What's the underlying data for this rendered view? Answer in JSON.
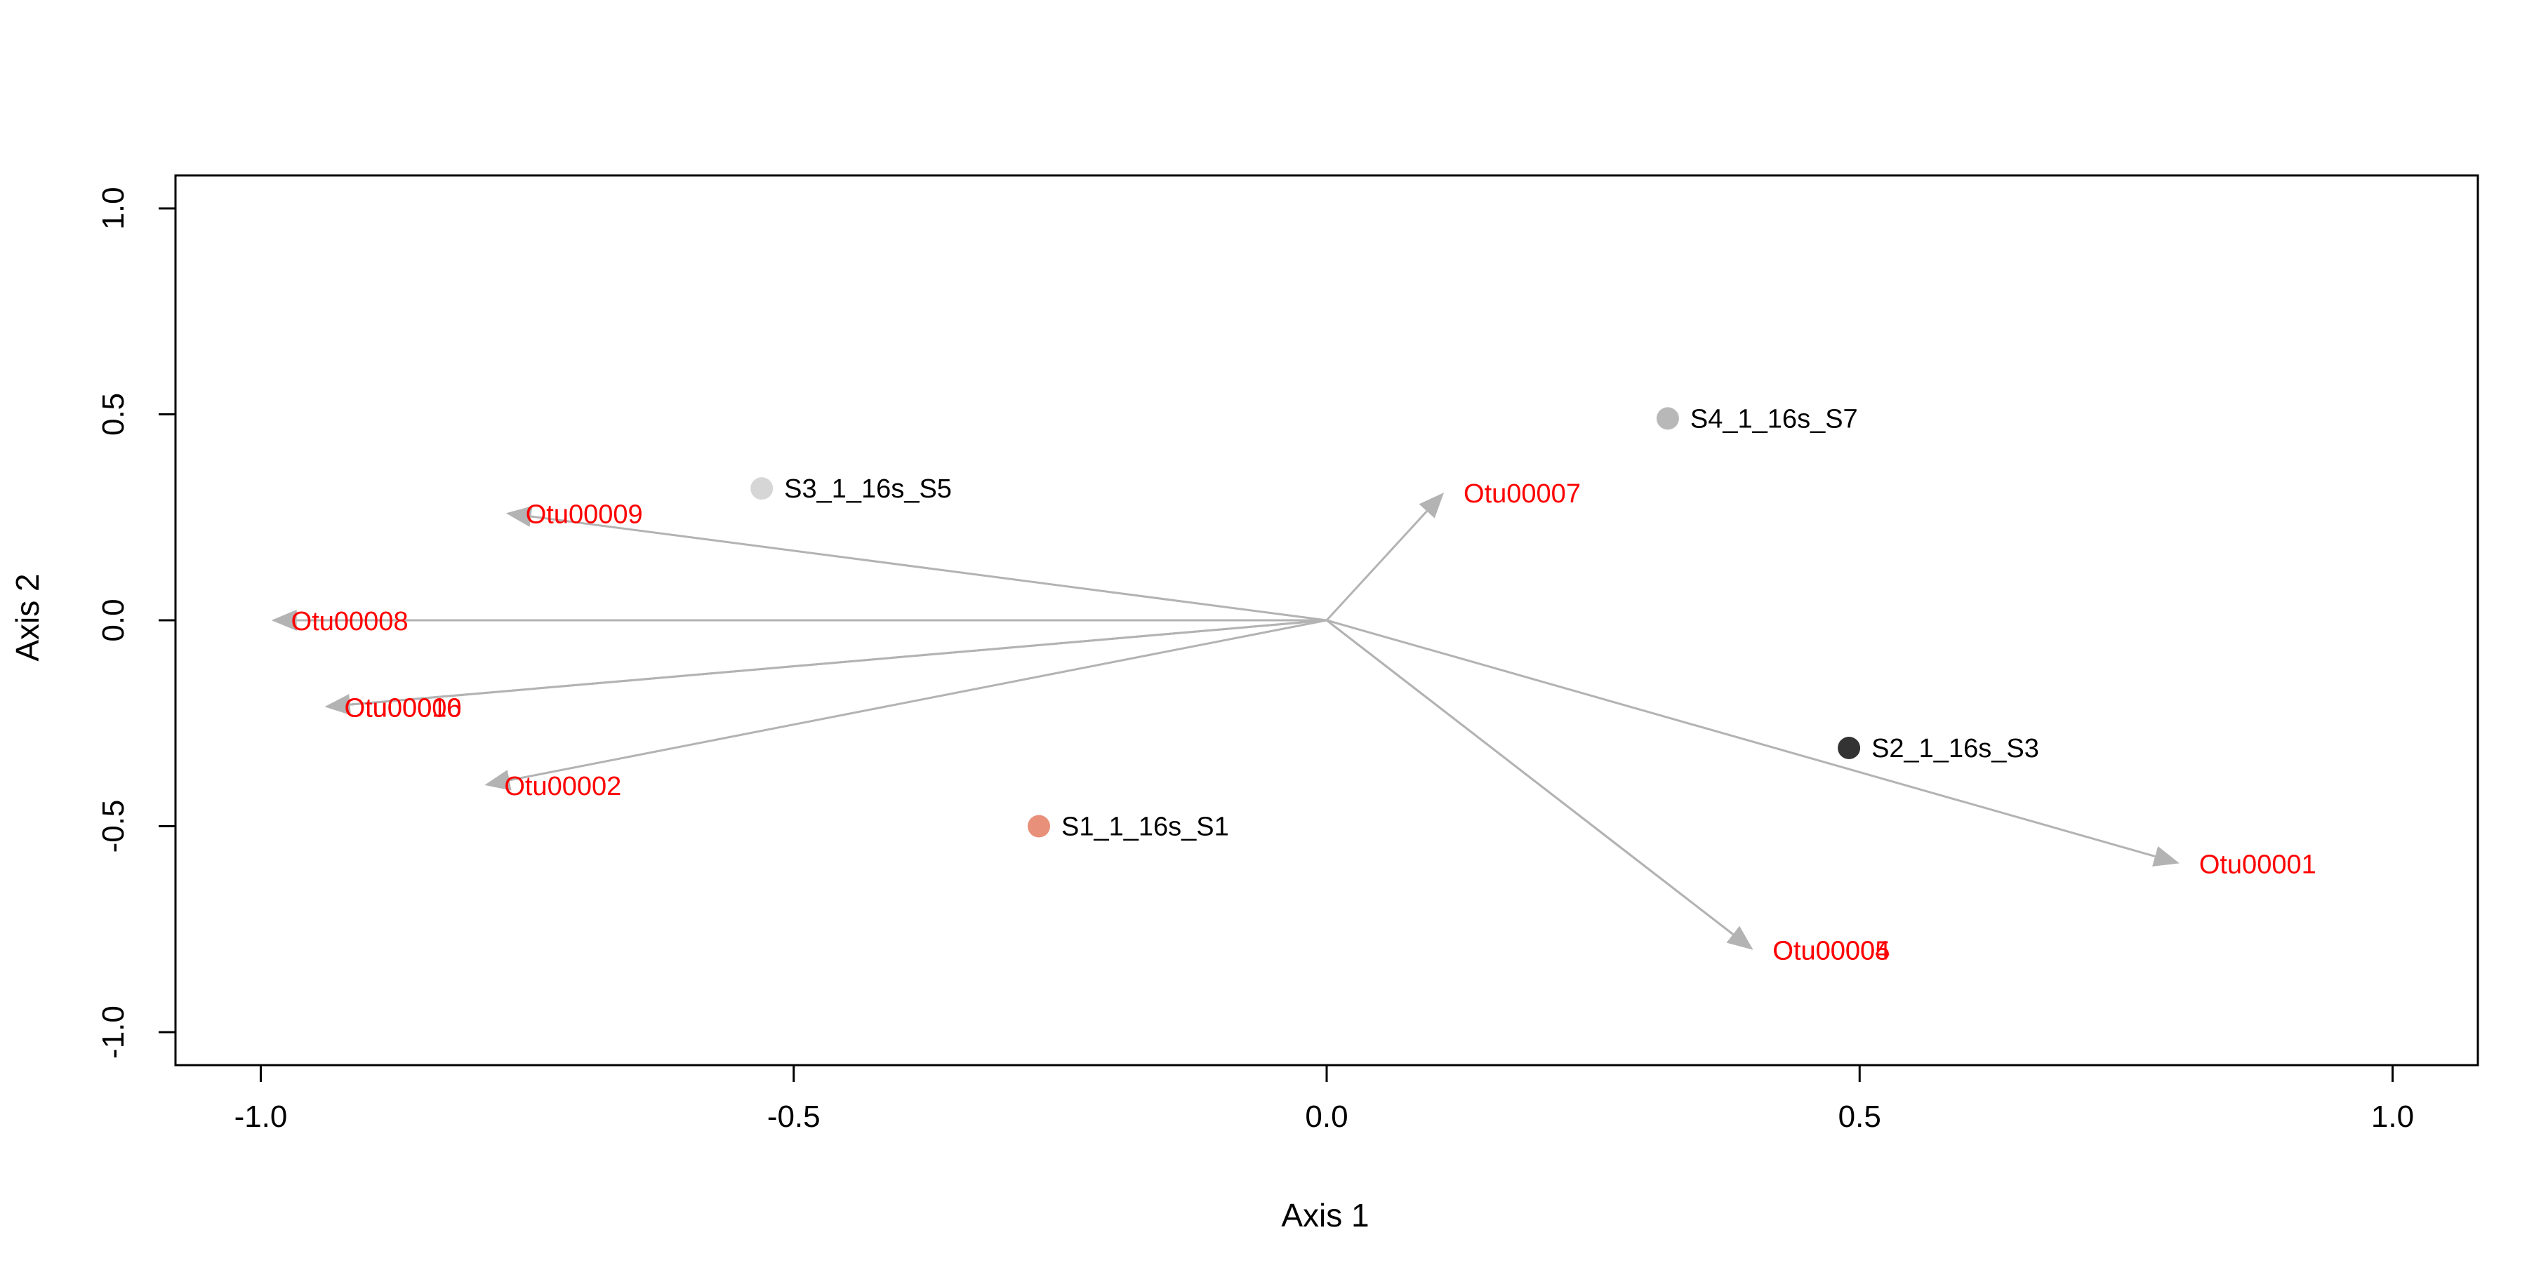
{
  "chart_data": {
    "type": "scatter",
    "xlabel": "Axis 1",
    "ylabel": "Axis 2",
    "xlim": [
      -1.08,
      1.08
    ],
    "ylim": [
      -1.08,
      1.08
    ],
    "x_ticks": [
      -1.0,
      -0.5,
      0.0,
      0.5,
      1.0
    ],
    "y_ticks": [
      -1.0,
      -0.5,
      0.0,
      0.5,
      1.0
    ],
    "x_tick_labels": [
      "-1.0",
      "-0.5",
      "0.0",
      "0.5",
      "1.0"
    ],
    "y_tick_labels": [
      "-1.0",
      "-0.5",
      "0.0",
      "0.5",
      "1.0"
    ],
    "grid": false,
    "samples": [
      {
        "label": "S1_1_16s_S1",
        "x": -0.27,
        "y": -0.5,
        "color": "#e9907a"
      },
      {
        "label": "S2_1_16s_S3",
        "x": 0.49,
        "y": -0.31,
        "color": "#333333"
      },
      {
        "label": "S3_1_16s_S5",
        "x": -0.53,
        "y": 0.32,
        "color": "#d6d6d6"
      },
      {
        "label": "S4_1_16s_S7",
        "x": 0.32,
        "y": 0.49,
        "color": "#b8b8b8"
      }
    ],
    "species_vectors": [
      {
        "label": "Otu00001",
        "x": 0.8,
        "y": -0.59
      },
      {
        "label": "Otu00002",
        "x": -0.79,
        "y": -0.4
      },
      {
        "label": "Otu00004",
        "x": 0.4,
        "y": -0.8
      },
      {
        "label": "Otu00005",
        "x": 0.4,
        "y": -0.8
      },
      {
        "label": "Otu00006",
        "x": -0.94,
        "y": -0.21
      },
      {
        "label": "Otu00007",
        "x": 0.11,
        "y": 0.31
      },
      {
        "label": "Otu00008",
        "x": -0.99,
        "y": 0.0
      },
      {
        "label": "Otu00009",
        "x": -0.77,
        "y": 0.26
      },
      {
        "label": "Otu00010",
        "x": -0.94,
        "y": -0.21
      }
    ],
    "colors": {
      "vector": "#b3b3b3",
      "species_label": "#ff0000",
      "frame": "#000000"
    }
  }
}
